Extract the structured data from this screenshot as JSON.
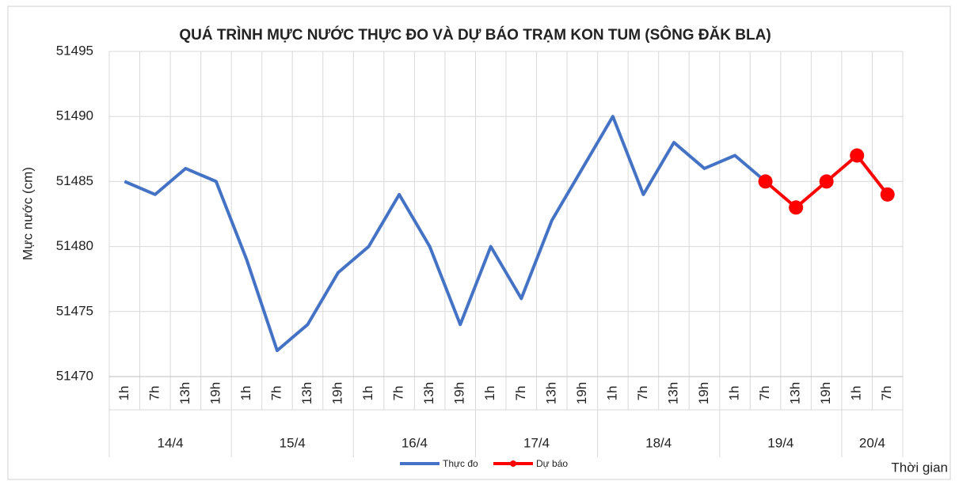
{
  "chart_data": {
    "type": "line",
    "title": "QUÁ TRÌNH MỰC NƯỚC THỰC ĐO VÀ DỰ BÁO TRẠM KON TUM (SÔNG ĐĂK BLA)",
    "y_label": "Mực nước (cm)",
    "x_label": "Thời gian",
    "groups": [
      {
        "label": "14/4",
        "categories": [
          "1h",
          "7h",
          "13h",
          "19h"
        ]
      },
      {
        "label": "15/4",
        "categories": [
          "1h",
          "7h",
          "13h",
          "19h"
        ]
      },
      {
        "label": "16/4",
        "categories": [
          "1h",
          "7h",
          "13h",
          "19h"
        ]
      },
      {
        "label": "17/4",
        "categories": [
          "1h",
          "7h",
          "13h",
          "19h"
        ]
      },
      {
        "label": "18/4",
        "categories": [
          "1h",
          "7h",
          "13h",
          "19h"
        ]
      },
      {
        "label": "19/4",
        "categories": [
          "1h",
          "7h",
          "13h",
          "19h"
        ]
      },
      {
        "label": "20/4",
        "categories": [
          "1h",
          "7h"
        ]
      }
    ],
    "series": [
      {
        "name": "Thực đo",
        "color": "#4472c4",
        "values": [
          51485,
          51484,
          51486,
          51485,
          51479,
          51472,
          51474,
          51478,
          51480,
          51484,
          51480,
          51474,
          51480,
          51476,
          51482,
          51486,
          51490,
          51484,
          51488,
          51486,
          51487,
          51485,
          null,
          null,
          null,
          null
        ]
      },
      {
        "name": "Dự báo",
        "color": "#ff0000",
        "markers": true,
        "values": [
          null,
          null,
          null,
          null,
          null,
          null,
          null,
          null,
          null,
          null,
          null,
          null,
          null,
          null,
          null,
          null,
          null,
          null,
          null,
          null,
          null,
          51485,
          51483,
          51485,
          51487,
          51484
        ]
      }
    ],
    "ylim": [
      51470,
      51495
    ],
    "yticks": [
      51470,
      51475,
      51480,
      51485,
      51490,
      51495
    ],
    "grid": true,
    "legend": "bottom"
  }
}
